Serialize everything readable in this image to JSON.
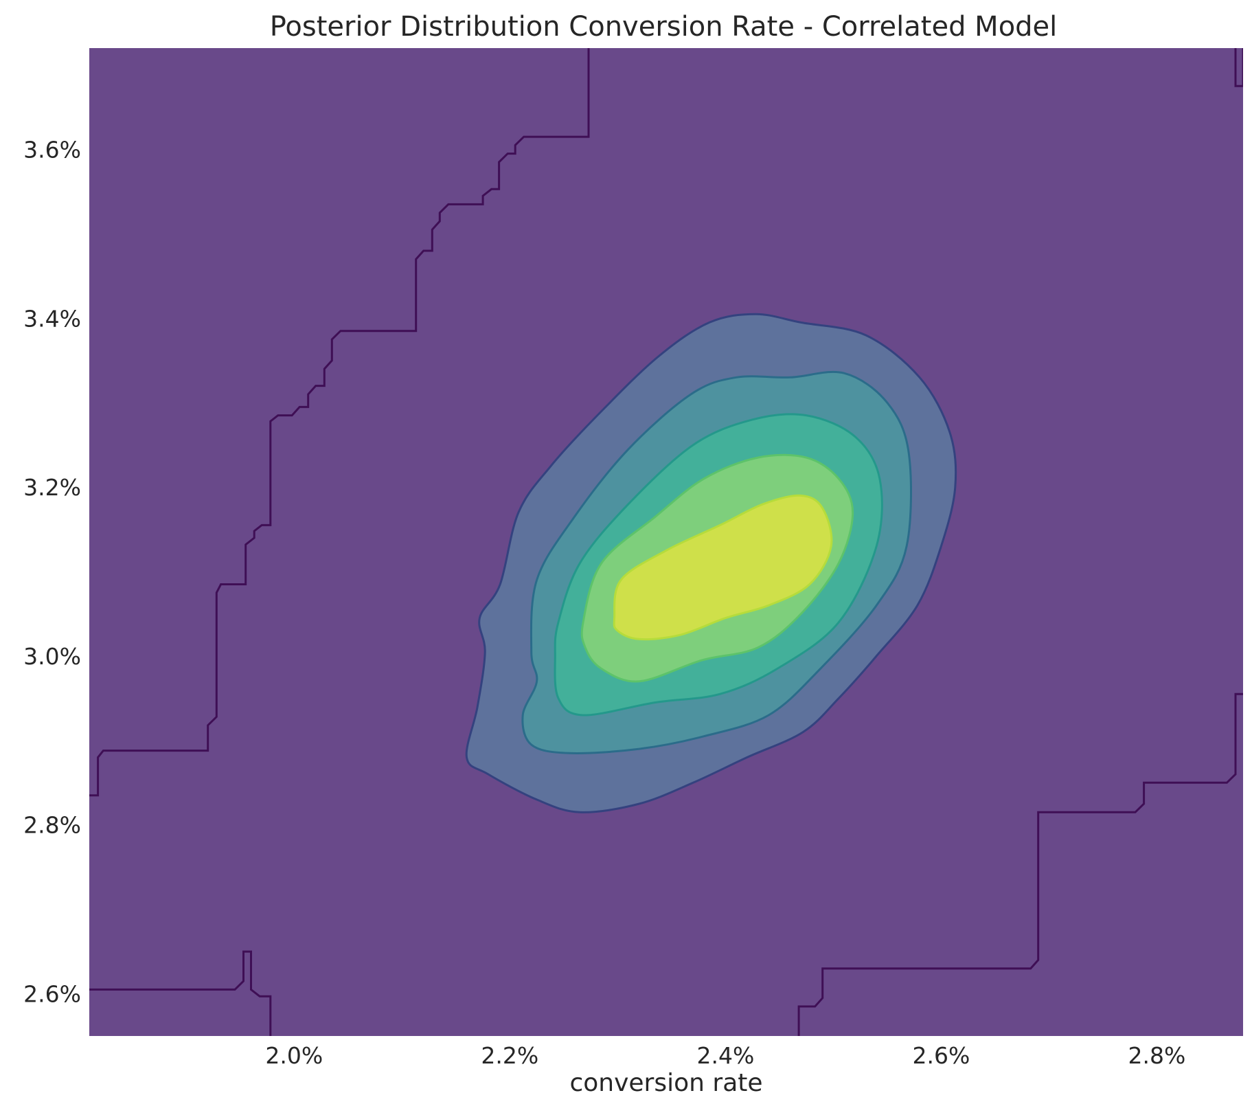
{
  "chart_data": {
    "type": "contour",
    "title": "Posterior Distribution Conversion Rate - Correlated Model",
    "xlabel": "conversion rate",
    "ylabel": "",
    "xlim": [
      0.0181,
      0.0288
    ],
    "ylim": [
      0.0255,
      0.0372
    ],
    "xticks": [
      0.02,
      0.022,
      0.024,
      0.026,
      0.028
    ],
    "xtick_labels": [
      "2.0%",
      "2.2%",
      "2.4%",
      "2.6%",
      "2.8%"
    ],
    "yticks": [
      0.026,
      0.028,
      0.03,
      0.032,
      0.034,
      0.036
    ],
    "ytick_labels": [
      "2.6%",
      "2.8%",
      "3.0%",
      "3.2%",
      "3.4%",
      "3.6%"
    ],
    "grid": false,
    "legend": false,
    "background_color": "#69498a",
    "level_colors": [
      "#69498a",
      "#5e729c",
      "#4e929f",
      "#43b09a",
      "#7ecf7c",
      "#cfe04a"
    ],
    "boundary_colors": [
      "#3f0f55",
      "#34427f",
      "#2b6c8a",
      "#24988b",
      "#5dc36a",
      "#b6dc3b"
    ],
    "levels": [
      {
        "level": 1,
        "contour": [
          [
            0.02191,
            0.03085
          ],
          [
            0.02208,
            0.0317
          ],
          [
            0.02238,
            0.03225
          ],
          [
            0.02285,
            0.0329
          ],
          [
            0.02338,
            0.03355
          ],
          [
            0.02385,
            0.03395
          ],
          [
            0.02428,
            0.03405
          ],
          [
            0.0247,
            0.03395
          ],
          [
            0.0253,
            0.0338
          ],
          [
            0.0258,
            0.0333
          ],
          [
            0.02608,
            0.03265
          ],
          [
            0.02613,
            0.032
          ],
          [
            0.026,
            0.0313
          ],
          [
            0.02578,
            0.0306
          ],
          [
            0.0254,
            0.03
          ],
          [
            0.02505,
            0.0295
          ],
          [
            0.02472,
            0.0291
          ],
          [
            0.0242,
            0.0288
          ],
          [
            0.0237,
            0.0285
          ],
          [
            0.0232,
            0.02825
          ],
          [
            0.02265,
            0.02815
          ],
          [
            0.02225,
            0.0283
          ],
          [
            0.0218,
            0.0286
          ],
          [
            0.0216,
            0.0288
          ],
          [
            0.0217,
            0.0294
          ],
          [
            0.02177,
            0.03005
          ],
          [
            0.02172,
            0.03045
          ]
        ]
      },
      {
        "level": 2,
        "contour": [
          [
            0.0222,
            0.03005
          ],
          [
            0.02225,
            0.0309
          ],
          [
            0.0226,
            0.03165
          ],
          [
            0.0231,
            0.03245
          ],
          [
            0.02368,
            0.0331
          ],
          [
            0.0241,
            0.0333
          ],
          [
            0.0246,
            0.0333
          ],
          [
            0.0251,
            0.03335
          ],
          [
            0.0255,
            0.033
          ],
          [
            0.0257,
            0.0324
          ],
          [
            0.02568,
            0.0313
          ],
          [
            0.0254,
            0.0306
          ],
          [
            0.02488,
            0.02985
          ],
          [
            0.0244,
            0.0293
          ],
          [
            0.0238,
            0.02905
          ],
          [
            0.0232,
            0.0289
          ],
          [
            0.02255,
            0.02885
          ],
          [
            0.0222,
            0.02895
          ],
          [
            0.02212,
            0.0293
          ],
          [
            0.02225,
            0.0297
          ]
        ]
      },
      {
        "level": 3,
        "contour": [
          [
            0.02245,
            0.0304
          ],
          [
            0.02265,
            0.0311
          ],
          [
            0.0231,
            0.0318
          ],
          [
            0.0237,
            0.0325
          ],
          [
            0.02425,
            0.0328
          ],
          [
            0.02475,
            0.03285
          ],
          [
            0.0252,
            0.0326
          ],
          [
            0.02543,
            0.0321
          ],
          [
            0.0254,
            0.0313
          ],
          [
            0.02505,
            0.0304
          ],
          [
            0.02448,
            0.02985
          ],
          [
            0.02395,
            0.02955
          ],
          [
            0.02335,
            0.02945
          ],
          [
            0.02268,
            0.0293
          ],
          [
            0.02245,
            0.0295
          ],
          [
            0.02242,
            0.03
          ]
        ]
      },
      {
        "level": 4,
        "contour": [
          [
            0.02268,
            0.0304
          ],
          [
            0.02285,
            0.0311
          ],
          [
            0.02335,
            0.03165
          ],
          [
            0.0238,
            0.0321
          ],
          [
            0.0243,
            0.03235
          ],
          [
            0.02475,
            0.03235
          ],
          [
            0.02505,
            0.0321
          ],
          [
            0.02518,
            0.0317
          ],
          [
            0.02505,
            0.0311
          ],
          [
            0.0247,
            0.0305
          ],
          [
            0.0243,
            0.0301
          ],
          [
            0.02378,
            0.02995
          ],
          [
            0.0232,
            0.0297
          ],
          [
            0.02285,
            0.02985
          ],
          [
            0.0227,
            0.0301
          ]
        ]
      },
      {
        "level": 5,
        "contour": [
          [
            0.02297,
            0.03045
          ],
          [
            0.02303,
            0.0309
          ],
          [
            0.02345,
            0.03125
          ],
          [
            0.02395,
            0.03155
          ],
          [
            0.02435,
            0.0318
          ],
          [
            0.0247,
            0.0319
          ],
          [
            0.0249,
            0.03175
          ],
          [
            0.02498,
            0.0313
          ],
          [
            0.02478,
            0.03085
          ],
          [
            0.0244,
            0.0306
          ],
          [
            0.024,
            0.03045
          ],
          [
            0.02358,
            0.03025
          ],
          [
            0.0232,
            0.0302
          ],
          [
            0.023,
            0.0303
          ]
        ]
      }
    ],
    "outer_level": {
      "level": 0,
      "contour_segments": [
        [
          [
            0.0181,
            0.02835
          ],
          [
            0.01818,
            0.02835
          ],
          [
            0.01818,
            0.0288
          ],
          [
            0.01823,
            0.02888
          ],
          [
            0.0192,
            0.02888
          ],
          [
            0.0192,
            0.02918
          ],
          [
            0.01928,
            0.02928
          ],
          [
            0.01928,
            0.03075
          ],
          [
            0.01932,
            0.03085
          ],
          [
            0.01955,
            0.03085
          ],
          [
            0.01955,
            0.03132
          ],
          [
            0.01963,
            0.0314
          ],
          [
            0.01963,
            0.03148
          ],
          [
            0.0197,
            0.03155
          ],
          [
            0.01978,
            0.03155
          ],
          [
            0.01978,
            0.03278
          ],
          [
            0.01985,
            0.03285
          ],
          [
            0.01998,
            0.03285
          ],
          [
            0.02005,
            0.03295
          ],
          [
            0.02013,
            0.03295
          ],
          [
            0.02013,
            0.0331
          ],
          [
            0.0202,
            0.0332
          ],
          [
            0.02028,
            0.0332
          ],
          [
            0.02028,
            0.0334
          ],
          [
            0.02035,
            0.0335
          ],
          [
            0.02035,
            0.03375
          ],
          [
            0.02043,
            0.03385
          ],
          [
            0.02113,
            0.03385
          ],
          [
            0.02113,
            0.0347
          ],
          [
            0.0212,
            0.0348
          ],
          [
            0.02128,
            0.0348
          ],
          [
            0.02128,
            0.03505
          ],
          [
            0.02135,
            0.03515
          ],
          [
            0.02135,
            0.03525
          ],
          [
            0.02143,
            0.03535
          ],
          [
            0.02175,
            0.03535
          ],
          [
            0.02175,
            0.03545
          ],
          [
            0.02183,
            0.03553
          ],
          [
            0.0219,
            0.03553
          ],
          [
            0.0219,
            0.03585
          ],
          [
            0.02198,
            0.03595
          ],
          [
            0.02205,
            0.03595
          ],
          [
            0.02205,
            0.03605
          ],
          [
            0.02213,
            0.03615
          ],
          [
            0.02273,
            0.03615
          ],
          [
            0.02273,
            0.0372
          ]
        ],
        [
          [
            0.02873,
            0.0372
          ],
          [
            0.02873,
            0.03675
          ],
          [
            0.0288,
            0.03675
          ],
          [
            0.0288,
            0.0372
          ]
        ],
        [
          [
            0.0288,
            0.02955
          ],
          [
            0.02873,
            0.02955
          ],
          [
            0.02873,
            0.0286
          ],
          [
            0.02865,
            0.0285
          ],
          [
            0.02788,
            0.0285
          ],
          [
            0.02788,
            0.02825
          ],
          [
            0.0278,
            0.02815
          ],
          [
            0.0269,
            0.02815
          ],
          [
            0.0269,
            0.0264
          ],
          [
            0.02683,
            0.0263
          ],
          [
            0.0249,
            0.0263
          ],
          [
            0.0249,
            0.02595
          ],
          [
            0.02483,
            0.02585
          ],
          [
            0.02468,
            0.02585
          ],
          [
            0.02468,
            0.0255
          ]
        ],
        [
          [
            0.0181,
            0.02605
          ],
          [
            0.01945,
            0.02605
          ],
          [
            0.01953,
            0.02615
          ],
          [
            0.01953,
            0.0265
          ],
          [
            0.0196,
            0.0265
          ],
          [
            0.0196,
            0.02605
          ],
          [
            0.01968,
            0.02597
          ],
          [
            0.01978,
            0.02597
          ],
          [
            0.01978,
            0.0255
          ]
        ]
      ]
    }
  }
}
